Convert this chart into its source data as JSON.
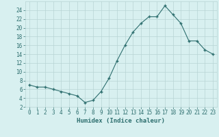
{
  "x": [
    0,
    1,
    2,
    3,
    4,
    5,
    6,
    7,
    8,
    9,
    10,
    11,
    12,
    13,
    14,
    15,
    16,
    17,
    18,
    19,
    20,
    21,
    22,
    23
  ],
  "y": [
    7,
    6.5,
    6.5,
    6,
    5.5,
    5,
    4.5,
    3,
    3.5,
    5.5,
    8.5,
    12.5,
    16,
    19,
    21,
    22.5,
    22.5,
    25,
    23,
    21,
    17,
    17,
    15,
    14
  ],
  "line_color": "#2d6e6e",
  "bg_color": "#d8f0f0",
  "grid_color": "#b8d4d4",
  "xlabel": "Humidex (Indice chaleur)",
  "ylim": [
    2,
    26
  ],
  "xlim": [
    -0.5,
    23.5
  ],
  "yticks": [
    2,
    4,
    6,
    8,
    10,
    12,
    14,
    16,
    18,
    20,
    22,
    24
  ],
  "xticks": [
    0,
    1,
    2,
    3,
    4,
    5,
    6,
    7,
    8,
    9,
    10,
    11,
    12,
    13,
    14,
    15,
    16,
    17,
    18,
    19,
    20,
    21,
    22,
    23
  ],
  "tick_fontsize": 5.5,
  "xlabel_fontsize": 6.5,
  "marker": "+",
  "markersize": 3.5,
  "linewidth": 0.8
}
